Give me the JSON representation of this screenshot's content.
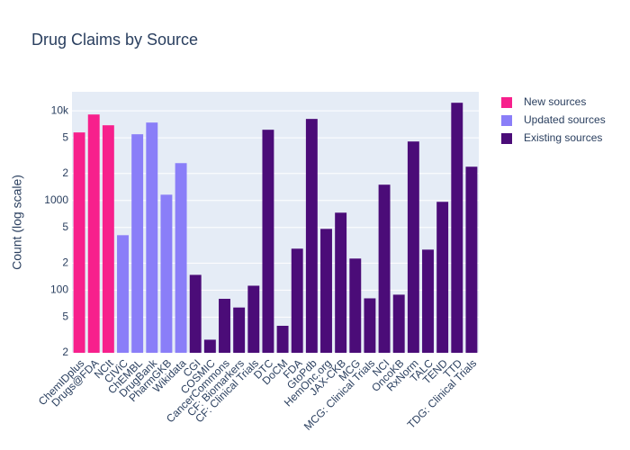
{
  "chart_data": {
    "type": "bar",
    "title": "Drug Claims by Source",
    "y_label": "Count (log scale)",
    "log_y": true,
    "grid": true,
    "legend_position": "right",
    "categories": [
      "ChemIDplus",
      "Drugs@FDA",
      "NCIt",
      "CIViC",
      "ChEMBL",
      "DrugBank",
      "PharmGKB",
      "Wikidata",
      "CGI",
      "COSMIC",
      "CancerCommons",
      "CF: Biomarkers",
      "CF: Clinical Trials",
      "DTC",
      "DoCM",
      "FDA",
      "GtoPdb",
      "HemOnc.org",
      "JAX-CKB",
      "MCG",
      "MCG: Clinical Trials",
      "NCI",
      "OncoKB",
      "RxNorm",
      "TALC",
      "TEND",
      "TTD",
      "TDG: Clinical Trials"
    ],
    "series": [
      {
        "name": "New sources",
        "color": "#f7208c",
        "values": [
          5740,
          9100,
          6900,
          null,
          null,
          null,
          null,
          null,
          null,
          null,
          null,
          null,
          null,
          null,
          null,
          null,
          null,
          null,
          null,
          null,
          null,
          null,
          null,
          null,
          null,
          null,
          null,
          null
        ]
      },
      {
        "name": "Updated sources",
        "color": "#8a7ef8",
        "values": [
          null,
          null,
          null,
          410,
          5480,
          7400,
          1160,
          2610,
          null,
          null,
          null,
          null,
          null,
          null,
          null,
          null,
          null,
          null,
          null,
          null,
          null,
          null,
          null,
          null,
          null,
          null,
          null,
          null
        ]
      },
      {
        "name": "Existing sources",
        "color": "#4b0c78",
        "values": [
          null,
          null,
          null,
          null,
          null,
          null,
          null,
          null,
          148,
          28,
          80,
          64,
          112,
          6150,
          40,
          290,
          8120,
          482,
          731,
          225,
          81,
          1500,
          89,
          4550,
          283,
          966,
          12300,
          2380
        ]
      }
    ],
    "ylim": [
      20,
      16300
    ],
    "yticks": [
      {
        "value": 20,
        "label": "2"
      },
      {
        "value": 50,
        "label": "5"
      },
      100,
      {
        "value": 200,
        "label": "2"
      },
      {
        "value": 500,
        "label": "5"
      },
      1000,
      {
        "value": 2000,
        "label": "2"
      },
      {
        "value": 5000,
        "label": "5"
      },
      {
        "value": 10000,
        "label": "10k"
      }
    ]
  }
}
